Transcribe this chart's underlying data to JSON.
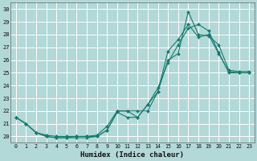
{
  "title": "",
  "xlabel": "Humidex (Indice chaleur)",
  "ylabel": "",
  "background_color": "#b2d8d8",
  "grid_color": "#ffffff",
  "line_color": "#1a7a6e",
  "xlim": [
    -0.5,
    23.5
  ],
  "ylim": [
    19.5,
    30.5
  ],
  "xticks": [
    0,
    1,
    2,
    3,
    4,
    5,
    6,
    7,
    8,
    9,
    10,
    11,
    12,
    13,
    14,
    15,
    16,
    17,
    18,
    19,
    20,
    21,
    22,
    23
  ],
  "yticks": [
    20,
    21,
    22,
    23,
    24,
    25,
    26,
    27,
    28,
    29,
    30
  ],
  "line1_x": [
    0,
    1,
    2,
    3,
    4,
    5,
    6,
    7,
    8,
    9,
    10,
    11,
    12,
    13,
    14,
    15,
    16,
    17,
    18,
    19,
    20,
    21,
    22,
    23
  ],
  "line1_y": [
    21.5,
    21.0,
    20.3,
    20.0,
    19.9,
    19.9,
    20.0,
    20.0,
    20.0,
    20.5,
    22.0,
    22.0,
    21.5,
    22.5,
    23.5,
    26.7,
    27.6,
    28.8,
    27.8,
    28.0,
    26.5,
    25.1,
    25.0,
    25.0
  ],
  "line2_x": [
    0,
    1,
    2,
    3,
    4,
    5,
    6,
    7,
    8,
    9,
    10,
    11,
    12,
    13,
    14,
    15,
    16,
    17,
    18,
    19,
    20,
    21,
    22,
    23
  ],
  "line2_y": [
    21.5,
    21.0,
    20.3,
    20.1,
    20.0,
    20.0,
    20.0,
    20.0,
    20.1,
    20.8,
    22.0,
    22.0,
    22.0,
    22.0,
    23.5,
    26.0,
    26.5,
    29.8,
    28.0,
    27.9,
    27.2,
    25.2,
    25.1,
    25.1
  ],
  "line3_x": [
    0,
    1,
    2,
    3,
    4,
    5,
    6,
    7,
    8,
    9,
    10,
    11,
    12,
    13,
    14,
    15,
    16,
    17,
    18,
    19,
    20,
    21,
    22,
    23
  ],
  "line3_y": [
    21.5,
    21.0,
    20.3,
    20.0,
    19.9,
    19.9,
    19.9,
    19.9,
    20.0,
    20.5,
    21.9,
    21.5,
    21.5,
    22.5,
    23.8,
    25.8,
    27.2,
    28.5,
    28.8,
    28.3,
    26.6,
    25.0,
    25.0,
    25.0
  ],
  "figwidth": 3.2,
  "figheight": 2.0,
  "dpi": 100
}
